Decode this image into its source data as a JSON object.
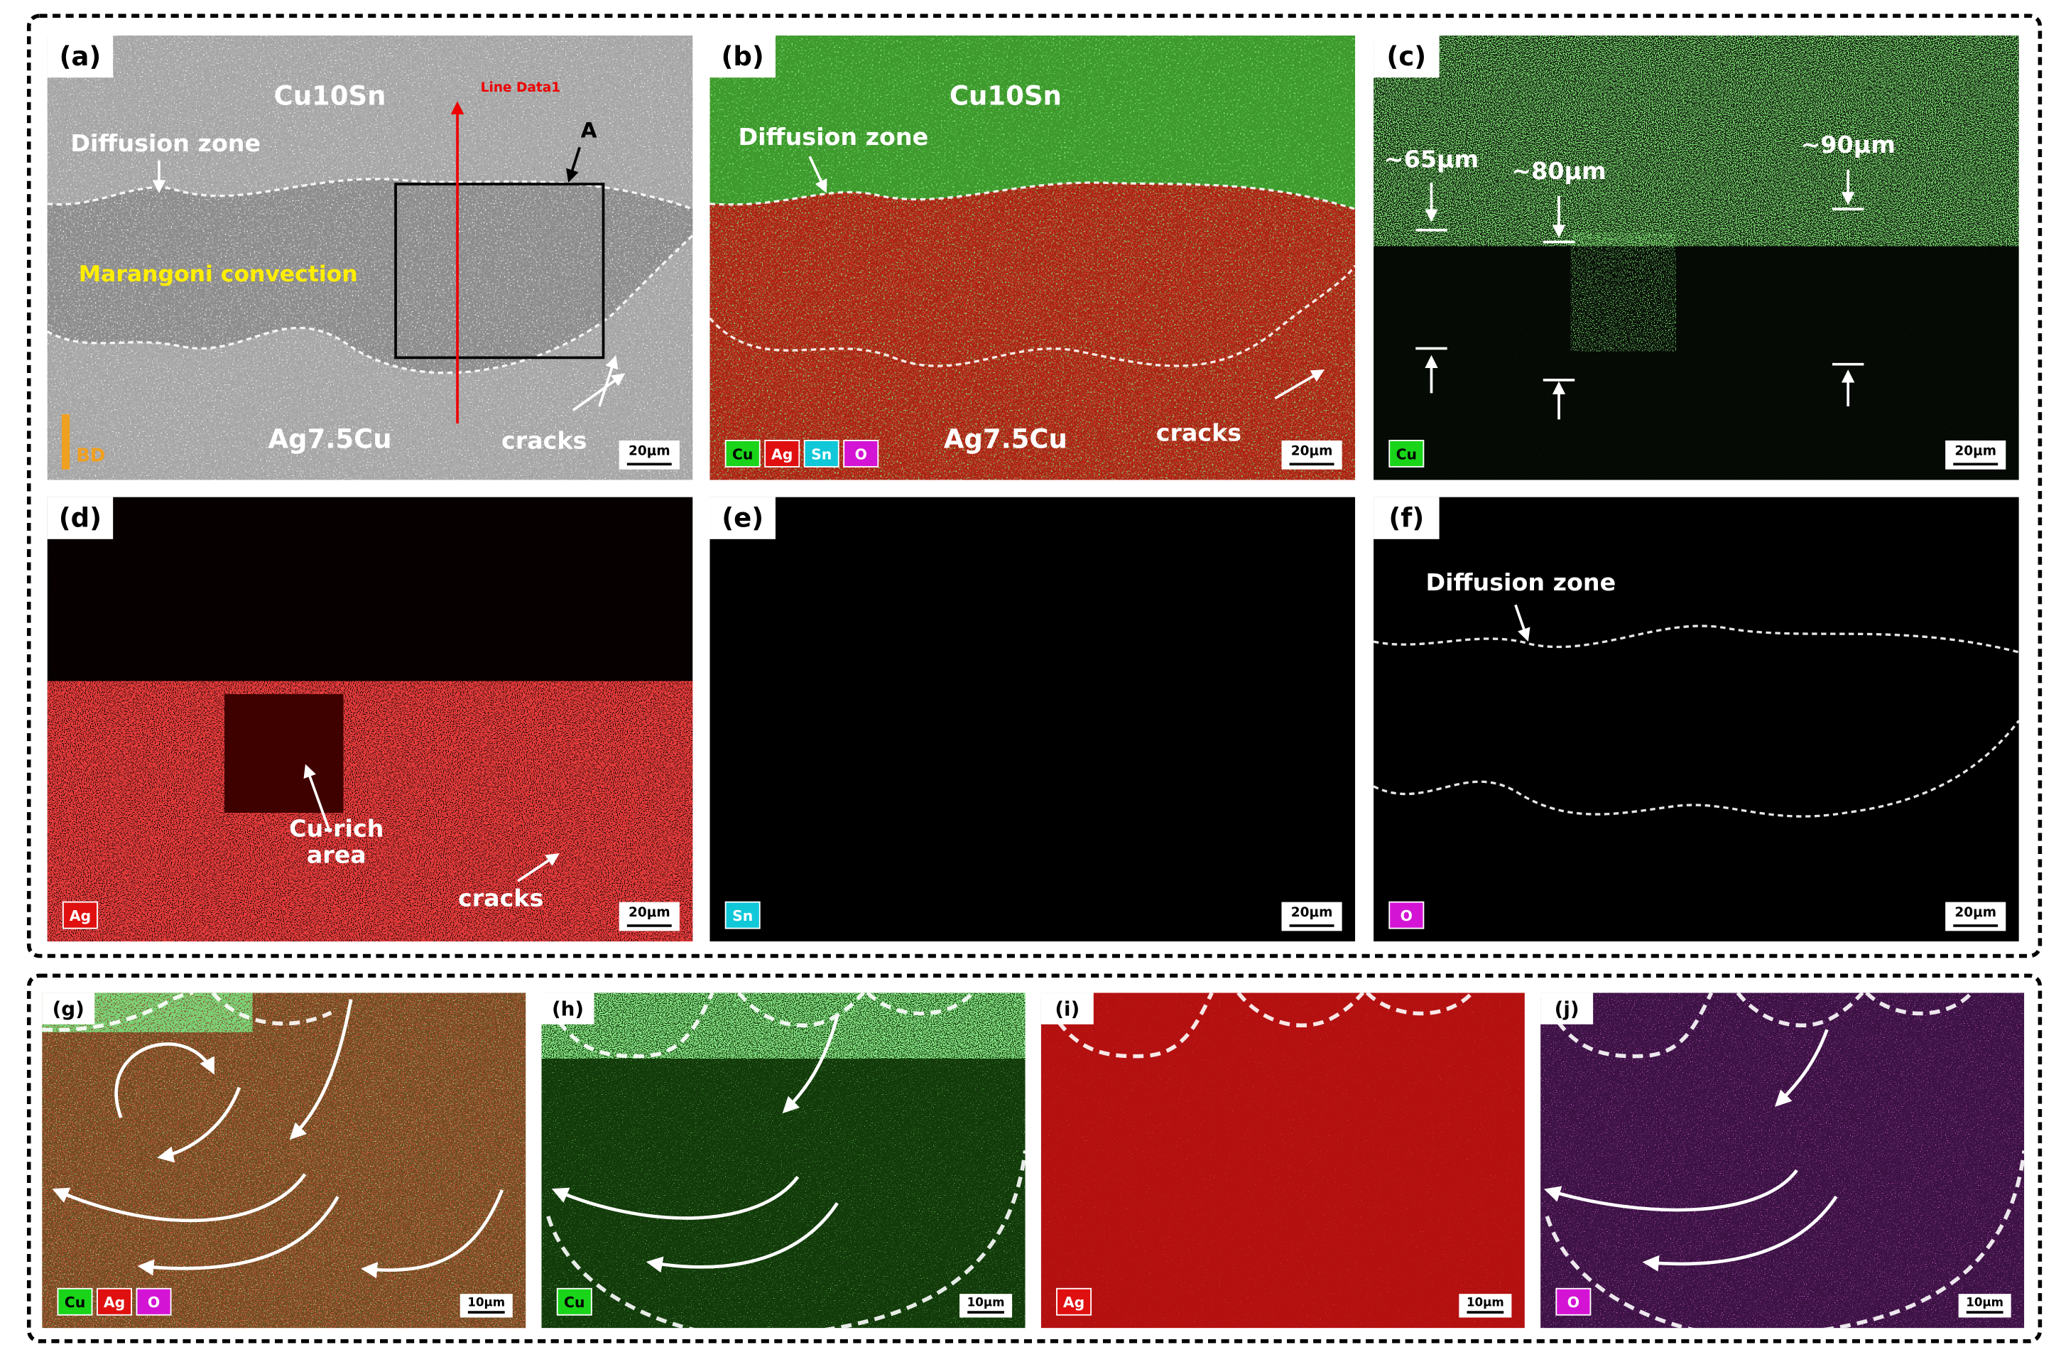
{
  "panels": [
    {
      "label": "(a)",
      "annotations": [
        "Cu10Sn",
        "Diffusion zone",
        "Line Data1",
        "A",
        "Marangoni convection",
        "Ag7.5Cu",
        "cracks",
        "BD"
      ],
      "elements": [],
      "scale_bar": "20μm"
    },
    {
      "label": "(b)",
      "annotations": [
        "Cu10Sn",
        "Diffusion zone",
        "Ag7.5Cu",
        "cracks"
      ],
      "elements": [
        {
          "name": "Cu",
          "color": "#19d419"
        },
        {
          "name": "Ag",
          "color": "#e01010"
        },
        {
          "name": "Sn",
          "color": "#10c8d8"
        },
        {
          "name": "O",
          "color": "#d414d4"
        }
      ],
      "scale_bar": "20μm"
    },
    {
      "label": "(c)",
      "annotations": [
        "~65μm",
        "~80μm",
        "~90μm"
      ],
      "elements": [
        {
          "name": "Cu",
          "color": "#19d419"
        }
      ],
      "scale_bar": "20μm"
    },
    {
      "label": "(d)",
      "annotations": [
        "Cu-rich",
        "area",
        "cracks"
      ],
      "elements": [
        {
          "name": "Ag",
          "color": "#e01010"
        }
      ],
      "scale_bar": "20μm"
    },
    {
      "label": "(e)",
      "annotations": [],
      "elements": [
        {
          "name": "Sn",
          "color": "#10c8d8"
        }
      ],
      "scale_bar": "20μm"
    },
    {
      "label": "(f)",
      "annotations": [
        "Diffusion zone"
      ],
      "elements": [
        {
          "name": "O",
          "color": "#d414d4"
        }
      ],
      "scale_bar": "20μm"
    },
    {
      "label": "(g)",
      "annotations": [],
      "elements": [
        {
          "name": "Cu",
          "color": "#19d419"
        },
        {
          "name": "Ag",
          "color": "#e01010"
        },
        {
          "name": "O",
          "color": "#d414d4"
        }
      ],
      "scale_bar": "10μm"
    },
    {
      "label": "(h)",
      "annotations": [],
      "elements": [
        {
          "name": "Cu",
          "color": "#19d419"
        }
      ],
      "scale_bar": "10μm"
    },
    {
      "label": "(i)",
      "annotations": [],
      "elements": [
        {
          "name": "Ag",
          "color": "#e01010"
        }
      ],
      "scale_bar": "10μm"
    },
    {
      "label": "(j)",
      "annotations": [],
      "elements": [
        {
          "name": "O",
          "color": "#d414d4"
        }
      ],
      "scale_bar": "10μm"
    }
  ]
}
